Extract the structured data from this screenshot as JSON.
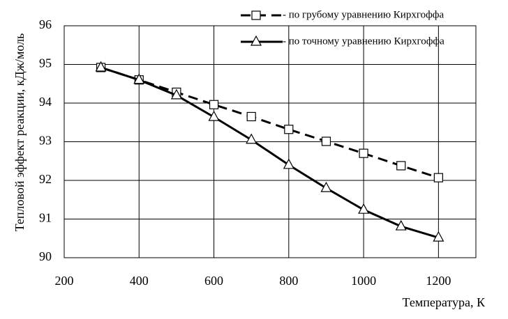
{
  "chart_data": {
    "type": "line",
    "xlabel": "Температура, К",
    "ylabel": "Тепловой эффект реакции, кДж/моль",
    "x": [
      298,
      400,
      500,
      600,
      700,
      800,
      900,
      1000,
      1100,
      1200
    ],
    "series": [
      {
        "name": "-  по грубому уравнению Кирхгоффа",
        "color": "#000000",
        "dash": true,
        "marker": "square",
        "values": [
          94.92,
          94.6,
          94.28,
          93.96,
          93.65,
          93.32,
          93.01,
          92.7,
          92.38,
          92.07
        ]
      },
      {
        "name": "-  по точному уравнению Кирхгоффа",
        "color": "#000000",
        "dash": false,
        "marker": "triangle",
        "values": [
          94.92,
          94.6,
          94.2,
          93.64,
          93.05,
          92.4,
          91.8,
          91.24,
          90.81,
          90.52
        ]
      }
    ],
    "xlim": [
      200,
      1300
    ],
    "xticks": [
      200,
      400,
      600,
      800,
      1000,
      1200
    ],
    "ylim": [
      90,
      96
    ],
    "yticks": [
      90,
      91,
      92,
      93,
      94,
      95,
      96
    ],
    "grid": true,
    "legend": "top-right"
  }
}
